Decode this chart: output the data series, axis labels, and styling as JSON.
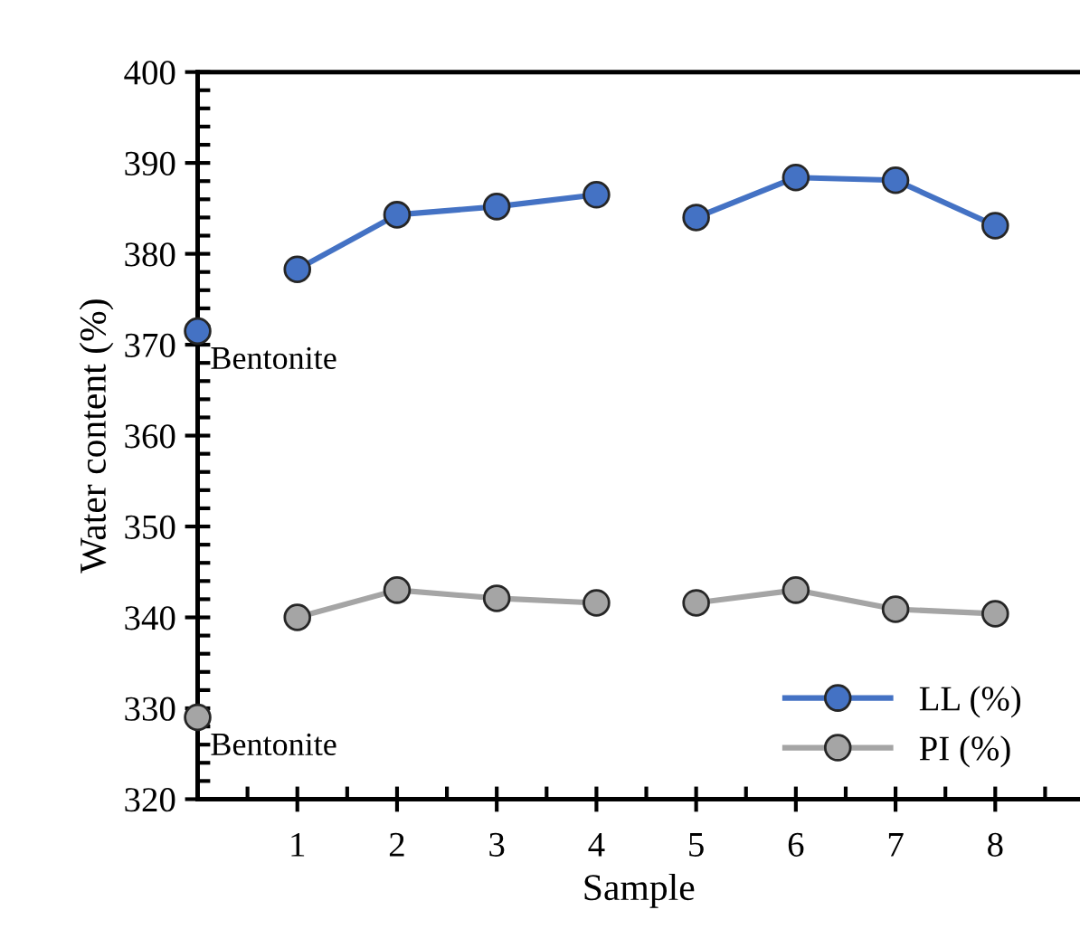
{
  "chart_data": {
    "type": "line",
    "xlabel": "Sample",
    "ylabel": "Water content (%)",
    "x": [
      0,
      0.5,
      1,
      2,
      3,
      4,
      4.5,
      5,
      6,
      7,
      8
    ],
    "series": [
      {
        "name": "LL (%)",
        "color": "#4472c4",
        "values": [
          371.5,
          null,
          378.3,
          384.3,
          385.2,
          386.5,
          null,
          384.0,
          388.4,
          388.1,
          383.1
        ]
      },
      {
        "name": "PI (%)",
        "color": "#a5a5a5",
        "values": [
          329.0,
          null,
          340.0,
          343.0,
          342.1,
          341.6,
          null,
          341.6,
          343.0,
          340.9,
          340.4
        ]
      }
    ],
    "annotations": [
      {
        "text": "Bentonite",
        "x": 0,
        "y": 371.5
      },
      {
        "text": "Bentonite",
        "x": 0,
        "y": 329.0
      }
    ],
    "xlim": [
      0,
      8.85
    ],
    "xticks": [
      1,
      2,
      3,
      4,
      5,
      6,
      7,
      8
    ],
    "ylim": [
      320,
      400
    ],
    "yticks": [
      320,
      330,
      340,
      350,
      360,
      370,
      380,
      390,
      400
    ],
    "marker": "circle",
    "line_style": "solid",
    "grid": false,
    "legend": "bottom right"
  }
}
